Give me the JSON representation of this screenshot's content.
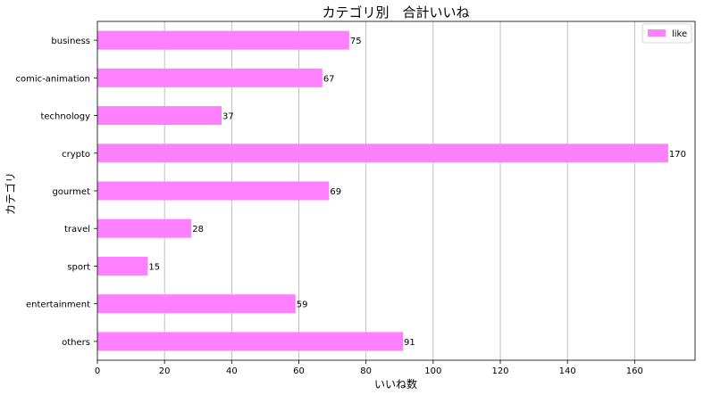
{
  "chart_data": {
    "type": "bar",
    "orientation": "horizontal",
    "title": "カテゴリ別　合計いいね",
    "xlabel": "いいね数",
    "ylabel": "カテゴリ",
    "categories": [
      "business",
      "comic-animation",
      "technology",
      "crypto",
      "gourmet",
      "travel",
      "sport",
      "entertainment",
      "others"
    ],
    "series": [
      {
        "name": "like",
        "values": [
          75,
          67,
          37,
          170,
          69,
          28,
          15,
          59,
          91
        ],
        "color": "#ff80ff"
      }
    ],
    "xlim": [
      0,
      178
    ],
    "xticks": [
      0,
      20,
      40,
      60,
      80,
      100,
      120,
      140,
      160
    ],
    "grid": "vertical",
    "legend_position": "top-right",
    "show_value_labels": true
  }
}
